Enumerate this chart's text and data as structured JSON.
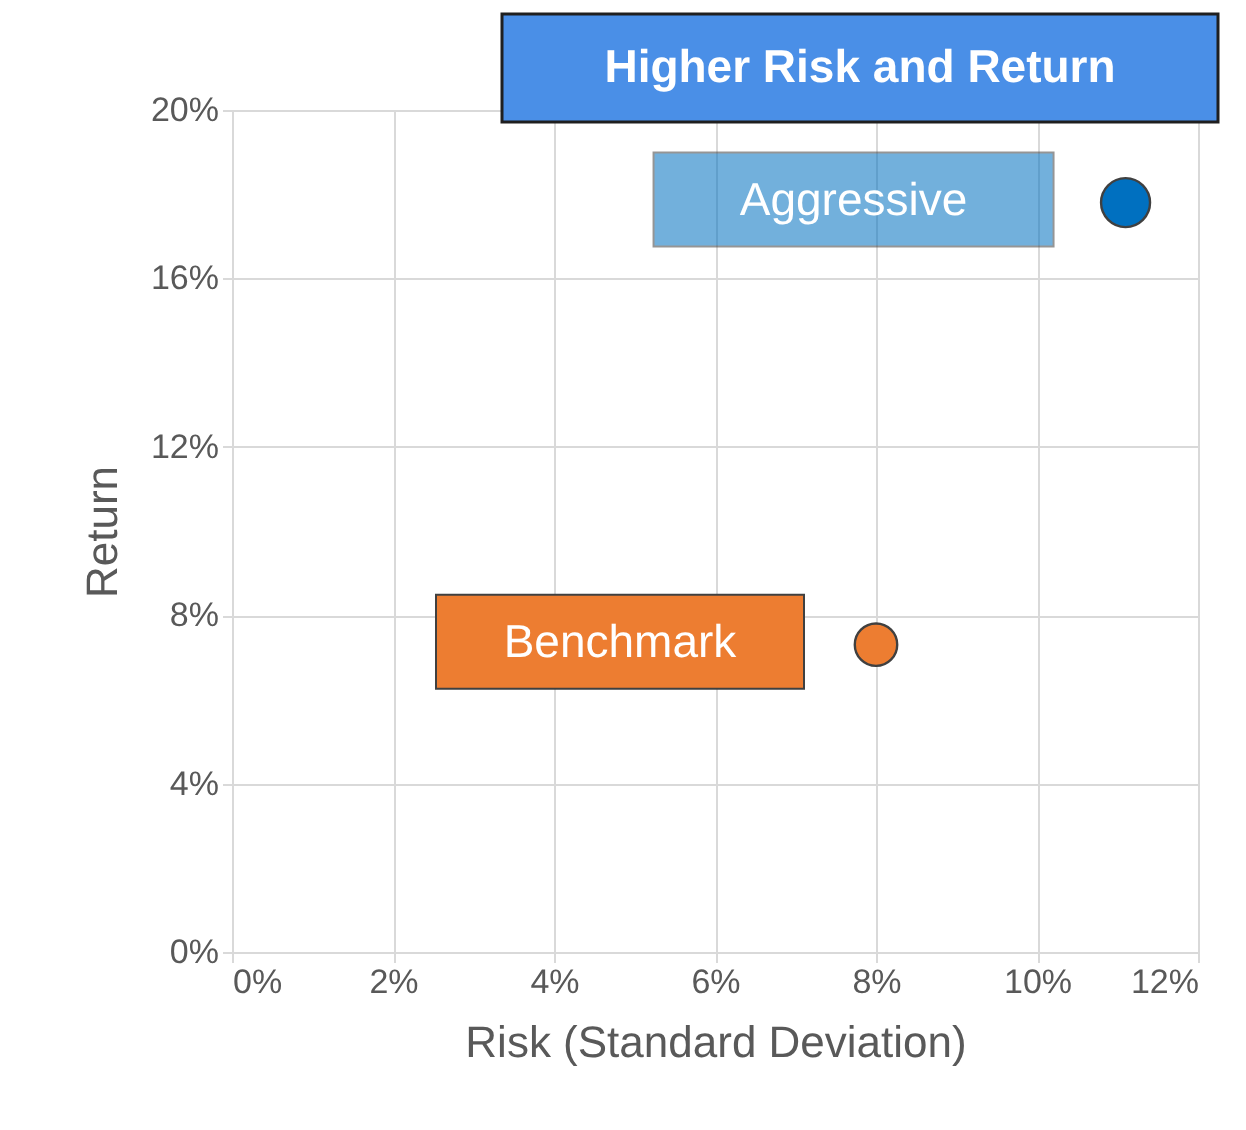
{
  "chart_data": {
    "type": "scatter",
    "title": "Higher Risk and Return",
    "xlabel": "Risk (Standard Deviation)",
    "ylabel": "Return",
    "series": [
      {
        "name": "Aggressive",
        "color": "#0070c0",
        "x": [
          11.1
        ],
        "values": [
          17.8
        ]
      },
      {
        "name": "Benchmark",
        "color": "#ed7d31",
        "x": [
          8.0
        ],
        "values": [
          7.3
        ]
      }
    ],
    "xlim": [
      0,
      12
    ],
    "xticks": [
      {
        "value": 0,
        "label": "0%"
      },
      {
        "value": 2,
        "label": "2%"
      },
      {
        "value": 4,
        "label": "4%"
      },
      {
        "value": 6,
        "label": "6%"
      },
      {
        "value": 8,
        "label": "8%"
      },
      {
        "value": 10,
        "label": "10%"
      },
      {
        "value": 12,
        "label": "12%"
      }
    ],
    "ylim": [
      0,
      20
    ],
    "yticks": [
      {
        "value": 0,
        "label": "0%"
      },
      {
        "value": 4,
        "label": "4%"
      },
      {
        "value": 8,
        "label": "8%"
      },
      {
        "value": 12,
        "label": "12%"
      },
      {
        "value": 16,
        "label": "16%"
      },
      {
        "value": 20,
        "label": "20%"
      }
    ],
    "grid": true,
    "legend": false,
    "marker": "circle"
  }
}
